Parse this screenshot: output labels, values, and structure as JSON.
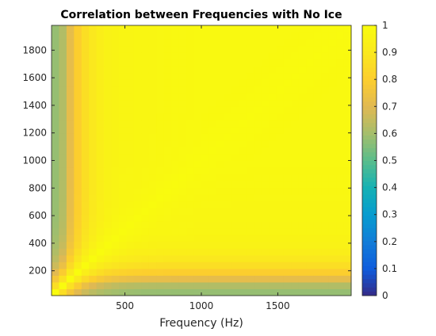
{
  "chart_data": {
    "type": "heatmap",
    "title": "Correlation between Frequencies with No Ice",
    "xlabel": "Frequency (Hz)",
    "ylabel": "",
    "xlim": [
      20,
      1980
    ],
    "ylim": [
      20,
      1980
    ],
    "x_ticks": [
      500,
      1000,
      1500
    ],
    "y_ticks": [
      200,
      400,
      600,
      800,
      1000,
      1200,
      1400,
      1600,
      1800
    ],
    "colorbar": {
      "colormap": "parula",
      "range": [
        0,
        1
      ],
      "ticks": [
        0,
        0.1,
        0.2,
        0.3,
        0.4,
        0.5,
        0.6,
        0.7,
        0.8,
        0.9,
        1
      ]
    },
    "grid": false,
    "matrix": {
      "bins": 40,
      "bin_width_hz": 49,
      "description_values": "symmetric correlation matrix; diagonal = 1; correlation with lowest ~100 Hz bins ≈ 0.6-0.7, rising to ≈0.85-0.9 near 200-300 Hz and ≈0.95-1 elsewhere",
      "profile_by_bin": [
        0.58,
        0.62,
        0.72,
        0.8,
        0.86,
        0.9,
        0.93,
        0.95,
        0.96,
        0.97
      ]
    }
  }
}
